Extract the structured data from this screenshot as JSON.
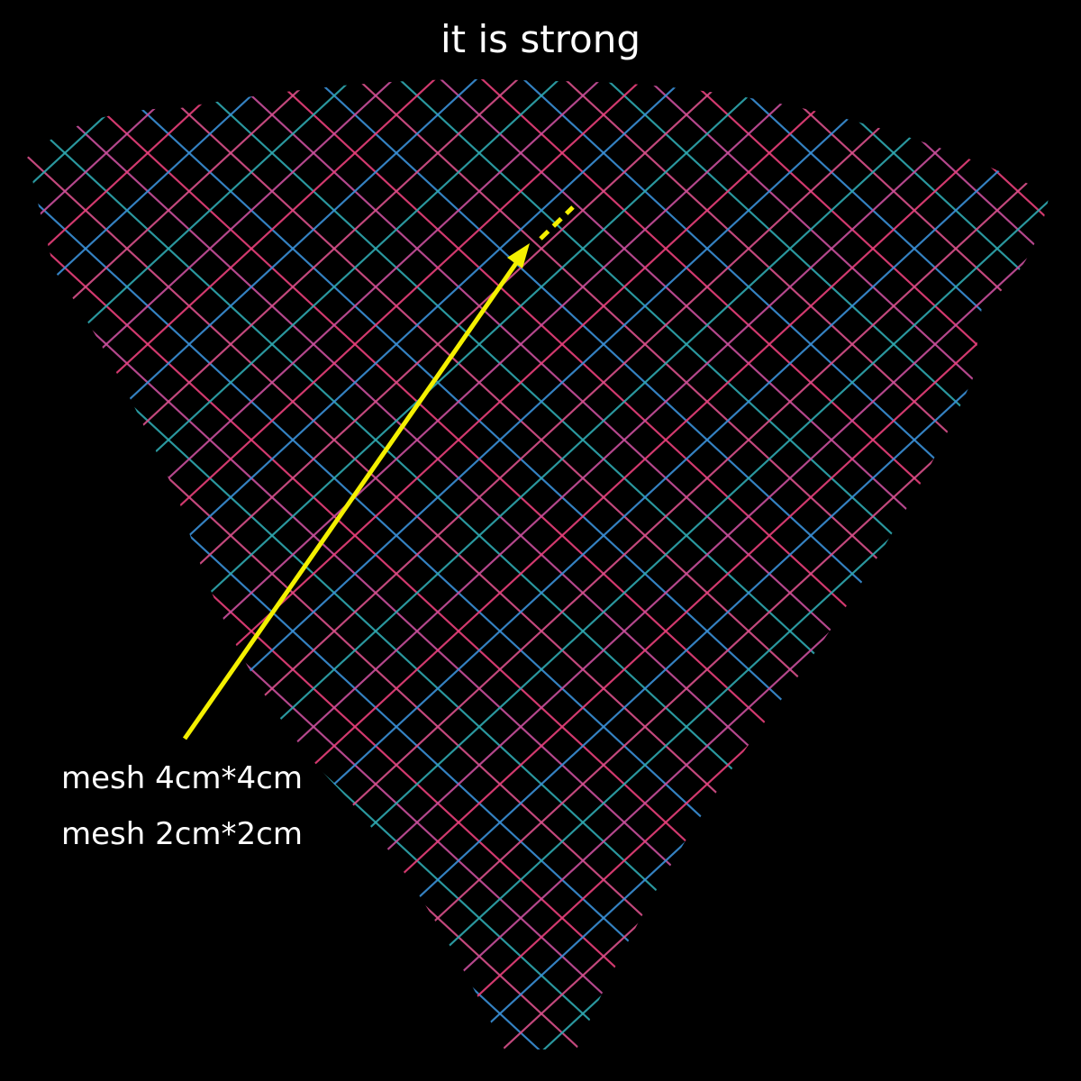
{
  "header": {
    "title": "it is strong"
  },
  "labels": [
    "mesh 4cm*4cm",
    "mesh 2cm*2cm"
  ]
}
